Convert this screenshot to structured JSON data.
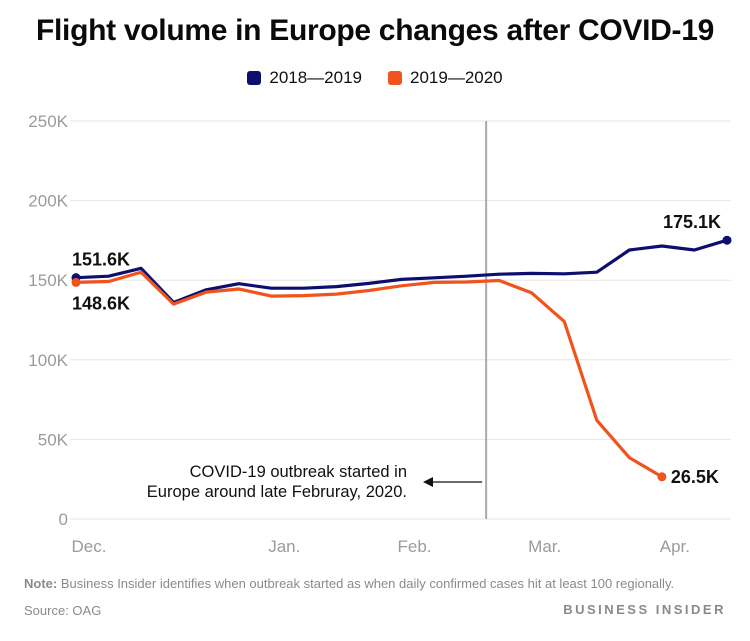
{
  "title": "Flight volume in Europe changes after COVID-19",
  "colors": {
    "series_2018_2019": "#0c0f6e",
    "series_2019_2020": "#f0531c",
    "axis_text": "#9b9b9b",
    "grid": "#e6e6e6",
    "marker": "#aaaaaa"
  },
  "chart_data": {
    "type": "line",
    "title": "Flight volume in Europe changes after COVID-19",
    "xlabel": "",
    "ylabel": "",
    "ylim": [
      0,
      250000
    ],
    "yticks": [
      0,
      50000,
      100000,
      150000,
      200000,
      250000
    ],
    "ytick_labels": [
      "0",
      "50K",
      "100K",
      "150K",
      "200K",
      "250K"
    ],
    "xlim": [
      0,
      10
    ],
    "xticks": [
      0,
      3,
      5,
      7,
      9
    ],
    "xtick_labels": [
      "Dec.",
      "Jan.",
      "Feb.",
      "Mar.",
      "Apr."
    ],
    "grid": true,
    "legend": "top-center",
    "series": [
      {
        "name": "2018—2019",
        "x": [
          0,
          0.5,
          1,
          1.5,
          2,
          2.5,
          3,
          3.5,
          4,
          4.5,
          5,
          5.5,
          6,
          6.5,
          7,
          7.5,
          8,
          8.5,
          9,
          9.5,
          10
        ],
        "values": [
          151600,
          152500,
          157500,
          136000,
          144000,
          147800,
          145000,
          145000,
          146000,
          148000,
          150500,
          151500,
          152500,
          153800,
          154300,
          154000,
          155000,
          169000,
          171500,
          169000,
          175100
        ]
      },
      {
        "name": "2019—2020",
        "x": [
          0,
          0.5,
          1,
          1.5,
          2,
          2.5,
          3,
          3.5,
          4,
          4.5,
          5,
          5.5,
          6,
          6.5,
          7,
          7.5,
          8,
          8.5,
          9
        ],
        "values": [
          148600,
          149200,
          155000,
          135000,
          142500,
          144500,
          140000,
          140300,
          141300,
          143500,
          146500,
          148600,
          148900,
          149800,
          142000,
          124000,
          62000,
          38500,
          26500
        ]
      }
    ],
    "point_labels": [
      {
        "series": 0,
        "index": 0,
        "text": "151.6K",
        "pos": "above"
      },
      {
        "series": 1,
        "index": 0,
        "text": "148.6K",
        "pos": "below"
      },
      {
        "series": 0,
        "index": 20,
        "text": "175.1K",
        "pos": "above-left"
      },
      {
        "series": 1,
        "index": 18,
        "text": "26.5K",
        "pos": "right"
      }
    ],
    "annotations": [
      {
        "x": 6.3,
        "text_lines": [
          "COVID-19 outbreak started in",
          "Europe around late Februray, 2020."
        ]
      }
    ]
  },
  "note": {
    "label": "Note:",
    "text": " Business Insider identifies when outbreak started as when daily confirmed cases hit at least 100 regionally."
  },
  "source": "Source: OAG",
  "brand": "BUSINESS INSIDER"
}
